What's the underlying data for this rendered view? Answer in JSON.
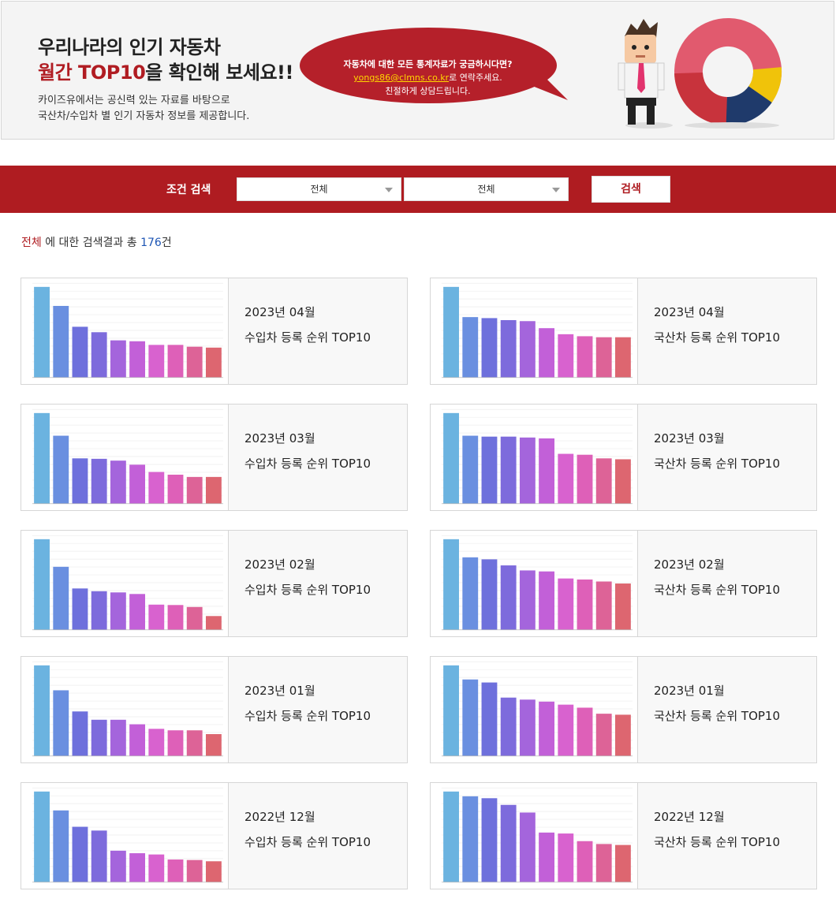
{
  "banner": {
    "title_line1": "우리나라의 인기 자동차",
    "title_line2_highlight": "월간 TOP10",
    "title_line2_rest": "을 확인해 보세요!!",
    "desc_line1": "카이즈유에서는 공신력 있는 자료를 바탕으로",
    "desc_line2": "국산차/수입차 별 인기 자동차 정보를 제공합니다.",
    "bubble_line1": "자동차에 대한 모든 통계자료가 궁금하시다면?",
    "bubble_email": "yongs86@clmns.co.kr",
    "bubble_line2_rest": "로 연락주세요.",
    "bubble_line3": "친절하게 상담드립니다."
  },
  "search": {
    "label": "조건 검색",
    "select1_value": "전체",
    "select2_value": "전체",
    "button_label": "검색"
  },
  "result": {
    "keyword": "전체",
    "middle": " 에 대한 검색결과 총 ",
    "count": "176",
    "suffix": "건"
  },
  "colors": {
    "accent": "#af1c21",
    "bars": [
      "#6bb3e0",
      "#6a8fe0",
      "#6e70dc",
      "#7d6bdc",
      "#a465dc",
      "#c260d8",
      "#d862cf",
      "#de60b8",
      "#dd6397",
      "#dd6670"
    ]
  },
  "cards": [
    {
      "month": "2023년 04월",
      "title": "수입차 등록 순위 TOP10",
      "values": [
        1000,
        790,
        560,
        500,
        410,
        400,
        360,
        360,
        340,
        330
      ]
    },
    {
      "month": "2023년 04월",
      "title": "국산차 등록 순위 TOP10",
      "values": [
        9000,
        6000,
        5900,
        5700,
        5600,
        4900,
        4300,
        4100,
        4000,
        4000
      ]
    },
    {
      "month": "2023년 03월",
      "title": "수입차 등록 순위 TOP10",
      "values": [
        2000,
        1500,
        1000,
        990,
        950,
        860,
        700,
        640,
        590,
        590
      ]
    },
    {
      "month": "2023년 03월",
      "title": "국산차 등록 순위 TOP10",
      "values": [
        10000,
        7500,
        7400,
        7400,
        7300,
        7200,
        5500,
        5400,
        5000,
        4900
      ]
    },
    {
      "month": "2023년 02월",
      "title": "수입차 등록 순위 TOP10",
      "values": [
        2300,
        1600,
        1050,
        980,
        950,
        910,
        640,
        630,
        580,
        350
      ]
    },
    {
      "month": "2023년 02월",
      "title": "국산차 등록 순위 TOP10",
      "values": [
        9000,
        7200,
        7000,
        6400,
        5900,
        5800,
        5100,
        5000,
        4800,
        4600
      ]
    },
    {
      "month": "2023년 01월",
      "title": "수입차 등록 순위 TOP10",
      "values": [
        1200,
        870,
        590,
        480,
        480,
        420,
        360,
        340,
        340,
        290
      ]
    },
    {
      "month": "2023년 01월",
      "title": "국산차 등록 순위 TOP10",
      "values": [
        9000,
        7600,
        7300,
        5800,
        5600,
        5400,
        5100,
        4800,
        4200,
        4100
      ]
    },
    {
      "month": "2022년 12월",
      "title": "수입차 등록 순위 TOP10",
      "values": [
        3600,
        2850,
        2200,
        2050,
        1250,
        1150,
        1100,
        900,
        880,
        830
      ]
    },
    {
      "month": "2022년 12월",
      "title": "국산차 등록 순위 TOP10",
      "values": [
        9500,
        9000,
        8800,
        8100,
        7300,
        5200,
        5100,
        4300,
        4000,
        3900
      ]
    }
  ]
}
